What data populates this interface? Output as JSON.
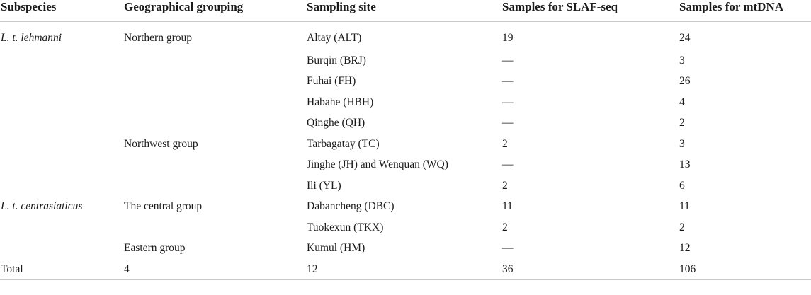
{
  "table": {
    "headers": [
      "Subspecies",
      "Geographical grouping",
      "Sampling site",
      "Samples for SLAF-seq",
      "Samples for mtDNA"
    ],
    "rows": [
      {
        "subspecies": "L. t. lehmanni",
        "group": "Northern group",
        "site": "Altay (ALT)",
        "slaf": "19",
        "mtdna": "24"
      },
      {
        "subspecies": "",
        "group": "",
        "site": "Burqin (BRJ)",
        "slaf": "—",
        "mtdna": "3"
      },
      {
        "subspecies": "",
        "group": "",
        "site": "Fuhai (FH)",
        "slaf": "—",
        "mtdna": "26"
      },
      {
        "subspecies": "",
        "group": "",
        "site": "Habahe (HBH)",
        "slaf": "—",
        "mtdna": "4"
      },
      {
        "subspecies": "",
        "group": "",
        "site": "Qinghe (QH)",
        "slaf": "—",
        "mtdna": "2"
      },
      {
        "subspecies": "",
        "group": "Northwest group",
        "site": "Tarbagatay (TC)",
        "slaf": "2",
        "mtdna": "3"
      },
      {
        "subspecies": "",
        "group": "",
        "site": "Jinghe (JH) and Wenquan (WQ)",
        "slaf": "—",
        "mtdna": "13"
      },
      {
        "subspecies": "",
        "group": "",
        "site": "Ili (YL)",
        "slaf": "2",
        "mtdna": "6"
      },
      {
        "subspecies": "L. t. centrasiaticus",
        "group": "The central group",
        "site": "Dabancheng (DBC)",
        "slaf": "11",
        "mtdna": "11"
      },
      {
        "subspecies": "",
        "group": "",
        "site": "Tuokexun (TKX)",
        "slaf": "2",
        "mtdna": "2"
      },
      {
        "subspecies": "",
        "group": "Eastern group",
        "site": "Kumul (HM)",
        "slaf": "—",
        "mtdna": "12"
      }
    ],
    "total": {
      "label": "Total",
      "group": "4",
      "site": "12",
      "slaf": "36",
      "mtdna": "106"
    }
  }
}
